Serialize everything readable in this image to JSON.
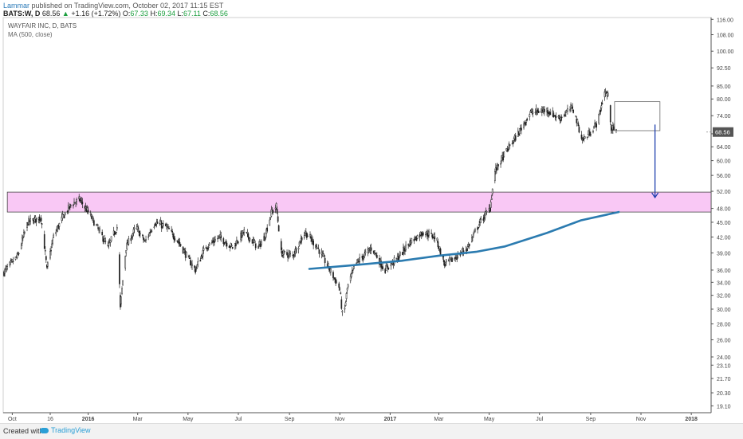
{
  "header": {
    "author": "Lammar",
    "published": " published on TradingView.com, October 02, 2017 11:15 EST",
    "symbol_interval": "BATS:W, D",
    "last": "68.56",
    "change": "+1.16 (+1.72%)",
    "o_label": "O:",
    "o_val": "67.33",
    "h_label": "H:",
    "h_val": "69.34",
    "l_label": "L:",
    "l_val": "67.11",
    "c_label": "C:",
    "c_val": "68.56"
  },
  "legend": {
    "symbol": "WAYFAIR INC, D, BATS",
    "indicator": "MA (500, close)"
  },
  "footer": {
    "created_with": "Created with",
    "brand": "TradingView"
  },
  "colors": {
    "candle": "#222222",
    "ma": "#2b7bb0",
    "zone_fill": "#f9c8f5",
    "arrow": "#1f3fae",
    "price_label_bg": "#555555"
  },
  "chart_data": {
    "type": "candlestick",
    "title": "WAYFAIR INC, D, BATS",
    "xlabel": "",
    "ylabel": "",
    "y_scale": "log",
    "ylim": [
      18.5,
      117
    ],
    "xlim": [
      "2015-09-20",
      "2018-01-25"
    ],
    "grid": false,
    "y_ticks": [
      "116.00",
      "108.00",
      "100.00",
      "92.50",
      "85.00",
      "80.00",
      "74.00",
      "68.00",
      "64.00",
      "60.00",
      "56.00",
      "52.00",
      "48.00",
      "45.00",
      "42.00",
      "39.00",
      "36.00",
      "34.00",
      "32.00",
      "30.00",
      "28.00",
      "26.00",
      "24.00",
      "23.10",
      "21.70",
      "20.30",
      "19.10"
    ],
    "x_ticks": [
      {
        "label": "Oct",
        "date": "2015-10-01"
      },
      {
        "label": "16",
        "date": "2015-11-16"
      },
      {
        "label": "2016",
        "date": "2016-01-01"
      },
      {
        "label": "Mar",
        "date": "2016-03-01"
      },
      {
        "label": "May",
        "date": "2016-05-01"
      },
      {
        "label": "Jul",
        "date": "2016-07-01"
      },
      {
        "label": "Sep",
        "date": "2016-09-01"
      },
      {
        "label": "Nov",
        "date": "2016-11-01"
      },
      {
        "label": "2017",
        "date": "2017-01-01"
      },
      {
        "label": "Mar",
        "date": "2017-03-01"
      },
      {
        "label": "May",
        "date": "2017-05-01"
      },
      {
        "label": "Jul",
        "date": "2017-07-01"
      },
      {
        "label": "Sep",
        "date": "2017-09-01"
      },
      {
        "label": "Nov",
        "date": "2017-11-01"
      },
      {
        "label": "2018",
        "date": "2018-01-01"
      }
    ],
    "last_price_label": "68.56",
    "price_path": [
      [
        "2015-09-20",
        35.5
      ],
      [
        "2015-10-08",
        38.5
      ],
      [
        "2015-10-20",
        45
      ],
      [
        "2015-11-05",
        46
      ],
      [
        "2015-11-12",
        36
      ],
      [
        "2015-11-20",
        42
      ],
      [
        "2015-12-01",
        46
      ],
      [
        "2015-12-12",
        49
      ],
      [
        "2015-12-22",
        50
      ],
      [
        "2016-01-05",
        46
      ],
      [
        "2016-01-15",
        43
      ],
      [
        "2016-01-25",
        40
      ],
      [
        "2016-02-05",
        44
      ],
      [
        "2016-02-09",
        30
      ],
      [
        "2016-02-16",
        40
      ],
      [
        "2016-02-28",
        44
      ],
      [
        "2016-03-10",
        41
      ],
      [
        "2016-03-22",
        45
      ],
      [
        "2016-04-05",
        44
      ],
      [
        "2016-04-20",
        41
      ],
      [
        "2016-05-01",
        38
      ],
      [
        "2016-05-10",
        36
      ],
      [
        "2016-05-22",
        40
      ],
      [
        "2016-06-08",
        42
      ],
      [
        "2016-06-24",
        40
      ],
      [
        "2016-07-08",
        43
      ],
      [
        "2016-07-25",
        40
      ],
      [
        "2016-08-02",
        42
      ],
      [
        "2016-08-10",
        47
      ],
      [
        "2016-08-16",
        48.5
      ],
      [
        "2016-08-22",
        39
      ],
      [
        "2016-09-05",
        38.5
      ],
      [
        "2016-09-20",
        43
      ],
      [
        "2016-10-05",
        40
      ],
      [
        "2016-10-20",
        36
      ],
      [
        "2016-11-01",
        33
      ],
      [
        "2016-11-05",
        28
      ],
      [
        "2016-11-10",
        33
      ],
      [
        "2016-11-20",
        37
      ],
      [
        "2016-12-10",
        40
      ],
      [
        "2016-12-25",
        36
      ],
      [
        "2017-01-10",
        38
      ],
      [
        "2017-01-25",
        41
      ],
      [
        "2017-02-10",
        43
      ],
      [
        "2017-02-25",
        42
      ],
      [
        "2017-03-08",
        37
      ],
      [
        "2017-03-20",
        38
      ],
      [
        "2017-04-05",
        40
      ],
      [
        "2017-04-20",
        45
      ],
      [
        "2017-05-02",
        48
      ],
      [
        "2017-05-04",
        51
      ],
      [
        "2017-05-08",
        57
      ],
      [
        "2017-05-20",
        62
      ],
      [
        "2017-06-05",
        68
      ],
      [
        "2017-06-20",
        75
      ],
      [
        "2017-07-10",
        76
      ],
      [
        "2017-07-25",
        73
      ],
      [
        "2017-08-10",
        77
      ],
      [
        "2017-08-22",
        66
      ],
      [
        "2017-08-30",
        68
      ],
      [
        "2017-09-10",
        72
      ],
      [
        "2017-09-18",
        83
      ],
      [
        "2017-09-22",
        81
      ],
      [
        "2017-09-26",
        70
      ],
      [
        "2017-10-02",
        68.56
      ]
    ],
    "series": [
      {
        "name": "MA (500, close)",
        "type": "line",
        "points": [
          [
            "2016-09-25",
            36.2
          ],
          [
            "2016-11-15",
            36.8
          ],
          [
            "2017-01-15",
            37.6
          ],
          [
            "2017-03-01",
            38.5
          ],
          [
            "2017-04-15",
            39.2
          ],
          [
            "2017-05-20",
            40.2
          ],
          [
            "2017-07-10",
            42.8
          ],
          [
            "2017-08-20",
            45.4
          ],
          [
            "2017-10-05",
            47.2
          ]
        ]
      }
    ],
    "annotations": [
      {
        "type": "rectangle",
        "name": "resistance-zone",
        "x": [
          "2015-09-25",
          "2018-01-25"
        ],
        "y": [
          47.2,
          51.8
        ],
        "fill": "#f9c8f5"
      },
      {
        "type": "rectangle",
        "name": "projection-box",
        "x": [
          "2017-09-30",
          "2017-11-24"
        ],
        "y": [
          69,
          79
        ]
      },
      {
        "type": "arrow",
        "name": "down-arrow",
        "x": "2017-11-18",
        "y": [
          71,
          50.5
        ]
      }
    ]
  }
}
